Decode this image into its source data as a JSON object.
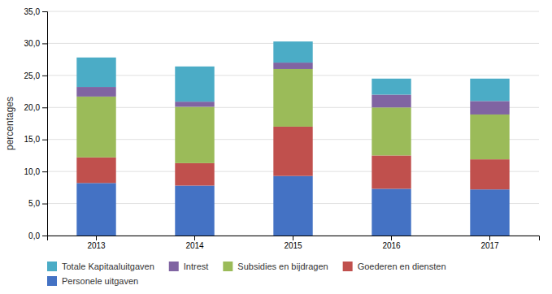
{
  "chart_data": {
    "type": "bar",
    "stacked": true,
    "categories": [
      "2013",
      "2014",
      "2015",
      "2016",
      "2017"
    ],
    "series": [
      {
        "name": "Personele uitgaven",
        "color": "#4472C4",
        "values": [
          8.2,
          7.8,
          9.3,
          7.3,
          7.2
        ]
      },
      {
        "name": "Goederen en diensten",
        "color": "#C0504D",
        "values": [
          4.0,
          3.5,
          7.7,
          5.2,
          4.7
        ]
      },
      {
        "name": "Subsidies en bijdragen",
        "color": "#9BBB59",
        "values": [
          9.5,
          8.8,
          9.0,
          7.5,
          7.0
        ]
      },
      {
        "name": "Intrest",
        "color": "#8064A2",
        "values": [
          1.5,
          0.8,
          1.0,
          2.0,
          2.1
        ]
      },
      {
        "name": "Totale Kapitaaluitgaven",
        "color": "#4BACC6",
        "values": [
          4.6,
          5.5,
          3.3,
          2.5,
          3.5
        ]
      }
    ],
    "ylabel": "percentages",
    "ylim": [
      0,
      35
    ],
    "yticks": [
      {
        "value": 0.0,
        "label": "0,0"
      },
      {
        "value": 5.0,
        "label": "5,0"
      },
      {
        "value": 10.0,
        "label": "10,0"
      },
      {
        "value": 15.0,
        "label": "15,0"
      },
      {
        "value": 20.0,
        "label": "20,0"
      },
      {
        "value": 25.0,
        "label": "25,0"
      },
      {
        "value": 30.0,
        "label": "30,0"
      },
      {
        "value": 35.0,
        "label": "35,0"
      }
    ],
    "grid": true,
    "legend": "bottom"
  }
}
